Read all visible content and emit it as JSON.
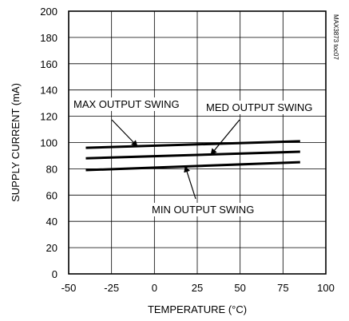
{
  "chart_data": {
    "type": "line",
    "xlabel": "TEMPERATURE (°C)",
    "ylabel": "SUPPLY CURRENT (mA)",
    "xlim": [
      -50,
      100
    ],
    "ylim": [
      0,
      200
    ],
    "x_ticks": [
      "-50",
      "-25",
      "0",
      "25",
      "50",
      "75",
      "100"
    ],
    "y_ticks": [
      "0",
      "20",
      "40",
      "60",
      "80",
      "100",
      "120",
      "140",
      "160",
      "180",
      "200"
    ],
    "grid": true,
    "series": [
      {
        "name": "MAX OUTPUT SWING",
        "x": [
          -40,
          85
        ],
        "y": [
          96,
          101
        ]
      },
      {
        "name": "MED OUTPUT SWING",
        "x": [
          -40,
          85
        ],
        "y": [
          88,
          93
        ]
      },
      {
        "name": "MIN OUTPUT SWING",
        "x": [
          -40,
          85
        ],
        "y": [
          79,
          85
        ]
      }
    ],
    "annotations": [
      {
        "text": "MAX OUTPUT SWING",
        "target_series": 0
      },
      {
        "text": "MED OUTPUT SWING",
        "target_series": 1
      },
      {
        "text": "MIN OUTPUT SWING",
        "target_series": 2
      }
    ],
    "figure_code": "MAX3873 toc07"
  }
}
